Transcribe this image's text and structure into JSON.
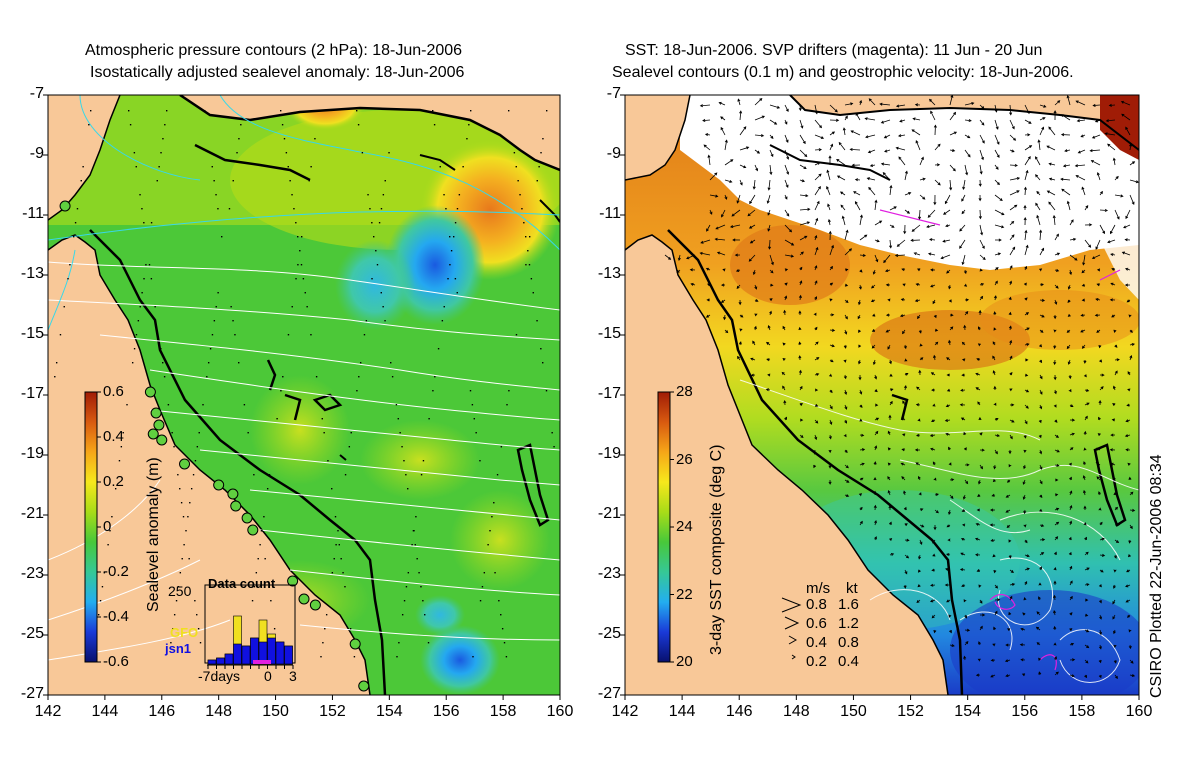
{
  "left_panel": {
    "title_line1": "Atmospheric pressure contours (2 hPa): 18-Jun-2006",
    "title_line2": "Isostatically adjusted sealevel anomaly: 18-Jun-2006",
    "colorbar": {
      "label": "Sealevel anomaly (m)",
      "ticks": [
        "0.6",
        "0.4",
        "0.2",
        "0",
        "-0.2",
        "-0.4",
        "-0.6"
      ],
      "colors": [
        "#08106e",
        "#1a3ad8",
        "#23aef0",
        "#36c896",
        "#48c83a",
        "#a8dc18",
        "#f6e81c",
        "#f6a618",
        "#d85a10",
        "#a01c06"
      ]
    },
    "inset": {
      "title": "Data count",
      "y_tick": "250",
      "x_ticks": [
        "-7days",
        "0",
        "3"
      ],
      "series": [
        {
          "name": "GFO",
          "color": "#f0e020"
        },
        {
          "name": "jsn1",
          "color": "#1010e0"
        }
      ]
    },
    "tide_gauges": [
      [
        142.6,
        -10.7
      ],
      [
        145.6,
        -16.9
      ],
      [
        145.8,
        -17.6
      ],
      [
        145.9,
        -18.0
      ],
      [
        145.7,
        -18.3
      ],
      [
        146.0,
        -18.5
      ],
      [
        146.8,
        -19.3
      ],
      [
        148.0,
        -20.0
      ],
      [
        148.5,
        -20.3
      ],
      [
        148.6,
        -20.7
      ],
      [
        149.0,
        -21.1
      ],
      [
        149.2,
        -21.5
      ],
      [
        150.6,
        -23.2
      ],
      [
        151.0,
        -23.8
      ],
      [
        151.4,
        -24.0
      ],
      [
        152.8,
        -25.3
      ],
      [
        153.1,
        -26.7
      ]
    ]
  },
  "right_panel": {
    "title_line1": "SST: 18-Jun-2006. SVP drifters (magenta): 11 Jun - 20 Jun",
    "title_line2": "Sealevel contours (0.1 m) and geostrophic velocity: 18-Jun-2006.",
    "colorbar": {
      "label": "3-day SST composite (deg C)",
      "ticks": [
        "28",
        "26",
        "24",
        "22",
        "20"
      ],
      "colors": [
        "#08106e",
        "#1a3ad8",
        "#23aef0",
        "#36c896",
        "#48c83a",
        "#a8dc18",
        "#f6e81c",
        "#f6a618",
        "#d85a10",
        "#a01c06"
      ]
    },
    "velocity_legend": {
      "header_ms": "m/s",
      "header_kt": "kt",
      "rows": [
        {
          "ms": "0.8",
          "kt": "1.6"
        },
        {
          "ms": "0.6",
          "kt": "1.2"
        },
        {
          "ms": "0.4",
          "kt": "0.8"
        },
        {
          "ms": "0.2",
          "kt": "0.4"
        }
      ]
    }
  },
  "axes": {
    "lat_ticks": [
      "-7",
      "-9",
      "-11",
      "-13",
      "-15",
      "-17",
      "-19",
      "-21",
      "-23",
      "-25",
      "-27"
    ],
    "lon_ticks": [
      "142",
      "144",
      "146",
      "148",
      "150",
      "152",
      "154",
      "156",
      "158",
      "160"
    ],
    "lat_range": [
      -27,
      -7
    ],
    "lon_range": [
      142,
      160
    ]
  },
  "credit": "CSIRO Plotted 22-Jun-2006 08:34",
  "palette": {
    "land": "#f8c898",
    "coast": "#000000",
    "contour_white": "#ffffff",
    "contour_cyan": "#38d8e8",
    "magenta": "#e020e0",
    "gauge": "#60d040"
  }
}
